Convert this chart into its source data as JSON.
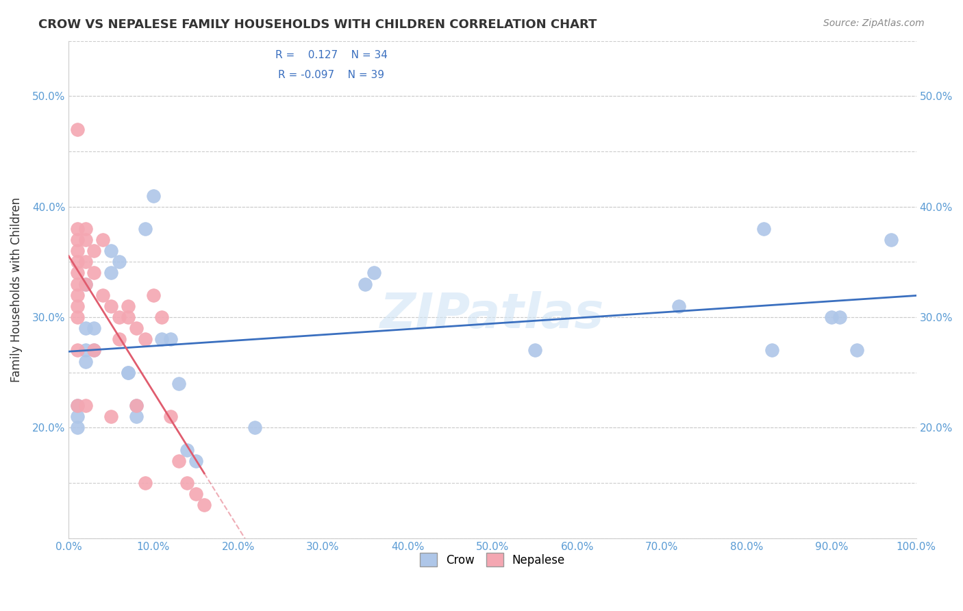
{
  "title": "CROW VS NEPALESE FAMILY HOUSEHOLDS WITH CHILDREN CORRELATION CHART",
  "source": "Source: ZipAtlas.com",
  "xlabel": "",
  "ylabel": "Family Households with Children",
  "legend_crow": "Crow",
  "legend_nepalese": "Nepalese",
  "crow_R": 0.127,
  "crow_N": 34,
  "nepalese_R": -0.097,
  "nepalese_N": 39,
  "xlim": [
    0,
    1.0
  ],
  "ylim": [
    0.1,
    0.55
  ],
  "xticks": [
    0.0,
    0.1,
    0.2,
    0.3,
    0.4,
    0.5,
    0.6,
    0.7,
    0.8,
    0.9,
    1.0
  ],
  "yticks": [
    0.1,
    0.15,
    0.2,
    0.25,
    0.3,
    0.35,
    0.4,
    0.45,
    0.5,
    0.55
  ],
  "crow_color": "#aec6e8",
  "nepalese_color": "#f4a7b2",
  "crow_line_color": "#3a6fbf",
  "nepalese_line_color": "#e05c6e",
  "watermark": "ZIPatlas",
  "crow_x": [
    0.01,
    0.01,
    0.01,
    0.02,
    0.02,
    0.02,
    0.02,
    0.03,
    0.03,
    0.05,
    0.05,
    0.06,
    0.07,
    0.07,
    0.08,
    0.08,
    0.09,
    0.1,
    0.11,
    0.12,
    0.13,
    0.14,
    0.15,
    0.22,
    0.35,
    0.36,
    0.55,
    0.72,
    0.82,
    0.83,
    0.9,
    0.91,
    0.93,
    0.97
  ],
  "crow_y": [
    0.22,
    0.21,
    0.2,
    0.33,
    0.29,
    0.27,
    0.26,
    0.29,
    0.27,
    0.36,
    0.34,
    0.35,
    0.25,
    0.25,
    0.22,
    0.21,
    0.38,
    0.41,
    0.28,
    0.28,
    0.24,
    0.18,
    0.17,
    0.2,
    0.33,
    0.34,
    0.27,
    0.31,
    0.38,
    0.27,
    0.3,
    0.3,
    0.27,
    0.37
  ],
  "nepalese_x": [
    0.01,
    0.01,
    0.01,
    0.01,
    0.01,
    0.01,
    0.01,
    0.01,
    0.01,
    0.01,
    0.01,
    0.01,
    0.02,
    0.02,
    0.02,
    0.02,
    0.02,
    0.03,
    0.03,
    0.03,
    0.04,
    0.04,
    0.05,
    0.05,
    0.06,
    0.06,
    0.07,
    0.07,
    0.08,
    0.08,
    0.09,
    0.09,
    0.1,
    0.11,
    0.12,
    0.13,
    0.14,
    0.15,
    0.16
  ],
  "nepalese_y": [
    0.47,
    0.38,
    0.37,
    0.36,
    0.35,
    0.34,
    0.33,
    0.32,
    0.31,
    0.3,
    0.27,
    0.22,
    0.38,
    0.37,
    0.35,
    0.33,
    0.22,
    0.36,
    0.34,
    0.27,
    0.37,
    0.32,
    0.31,
    0.21,
    0.3,
    0.28,
    0.31,
    0.3,
    0.29,
    0.22,
    0.28,
    0.15,
    0.32,
    0.3,
    0.21,
    0.17,
    0.15,
    0.14,
    0.13
  ]
}
